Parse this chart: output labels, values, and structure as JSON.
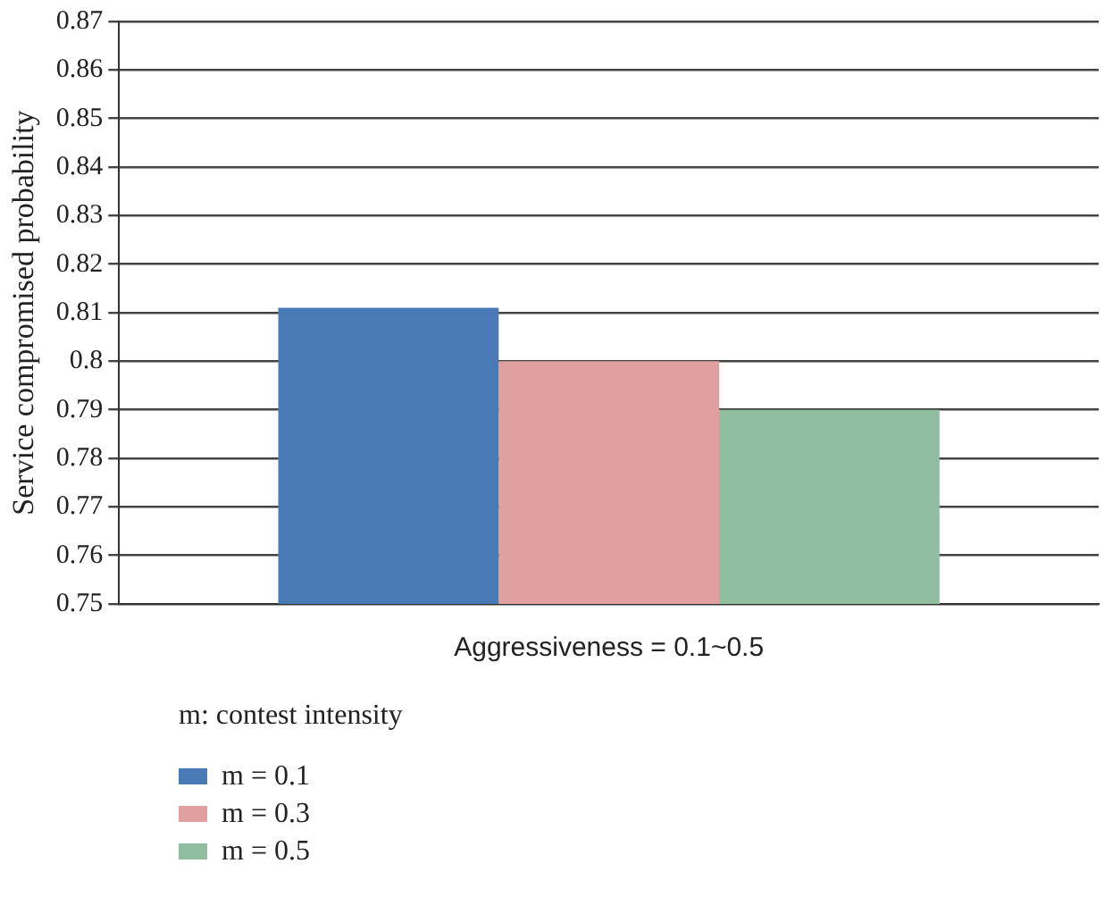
{
  "chart_data": {
    "type": "bar",
    "categories": [
      "Aggressiveness = 0.1~0.5"
    ],
    "ylabel": "Service compromised probability",
    "legend_title": "m: contest intensity",
    "legend": "bottom left",
    "grid": "y",
    "ylim": [
      0.75,
      0.87
    ],
    "yticks": [
      0.75,
      0.76,
      0.77,
      0.78,
      0.79,
      0.8,
      0.81,
      0.82,
      0.83,
      0.84,
      0.85,
      0.86,
      0.87
    ],
    "series": [
      {
        "name": "m = 0.1",
        "color": "#4a7ab5",
        "values": [
          0.811
        ]
      },
      {
        "name": "m = 0.3",
        "color": "#e0a0a0",
        "values": [
          0.8
        ]
      },
      {
        "name": "m = 0.5",
        "color": "#8fbf9f",
        "values": [
          0.79
        ]
      }
    ]
  }
}
